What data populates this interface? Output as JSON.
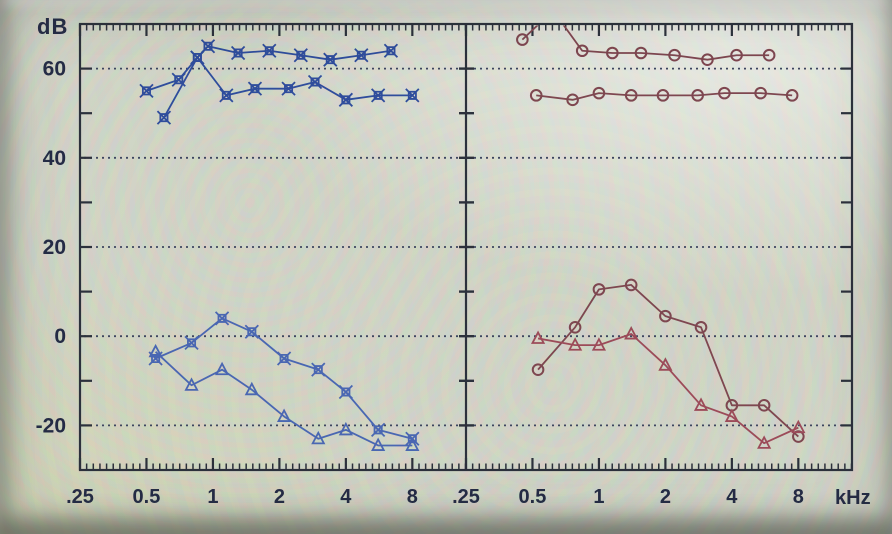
{
  "chart_data": {
    "type": "line",
    "title": "",
    "y_axis": {
      "unit_label": "dB",
      "tick_labels": [
        "60",
        "40",
        "20",
        "0",
        "-20"
      ],
      "tick_values": [
        60,
        40,
        20,
        0,
        -20
      ],
      "range": [
        -30,
        70
      ],
      "minor_tick_step": 10,
      "gridline_values": [
        60,
        40,
        20,
        0,
        -20
      ],
      "grid_style": "dotted"
    },
    "x_axis": {
      "unit_label": "kHz",
      "tick_labels": [
        ".25",
        "0.5",
        "1",
        "2",
        "4",
        "8"
      ],
      "tick_values": [
        0.25,
        0.5,
        1,
        2,
        4,
        8
      ],
      "range": [
        0.25,
        14
      ],
      "scale": "log"
    },
    "colors": {
      "axis": "#2c313c",
      "grid_dots": "#3e4660",
      "label_text": "#252c46",
      "left_panel_curves": "#35539f",
      "right_panel_curves": "#7e4750",
      "background": "#d3d7c9"
    },
    "panels": [
      {
        "id": "left",
        "series": [
          {
            "name": "upper-1",
            "marker": "x-square",
            "color": "#2f4d9c",
            "points": [
              [
                0.5,
                55
              ],
              [
                0.7,
                57.5
              ],
              [
                0.85,
                62.5
              ],
              [
                0.95,
                65
              ],
              [
                1.3,
                63.5
              ],
              [
                1.8,
                64
              ],
              [
                2.5,
                63
              ],
              [
                3.4,
                62
              ],
              [
                4.7,
                63
              ],
              [
                6.4,
                64
              ]
            ]
          },
          {
            "name": "upper-2",
            "marker": "x-square",
            "color": "#2f4d9c",
            "points": [
              [
                0.6,
                49
              ],
              [
                0.85,
                62.5
              ],
              [
                1.15,
                54
              ],
              [
                1.55,
                55.5
              ],
              [
                2.2,
                55.5
              ],
              [
                2.9,
                57
              ],
              [
                4,
                53
              ],
              [
                5.6,
                54
              ],
              [
                8,
                54
              ]
            ]
          },
          {
            "name": "lower-square",
            "marker": "x-square",
            "color": "#4a67b2",
            "points": [
              [
                0.55,
                -5
              ],
              [
                0.8,
                -1.5
              ],
              [
                1.1,
                4
              ],
              [
                1.5,
                1
              ],
              [
                2.1,
                -5
              ],
              [
                3,
                -7.5
              ],
              [
                4,
                -12.5
              ],
              [
                5.6,
                -21
              ],
              [
                8,
                -23
              ]
            ]
          },
          {
            "name": "lower-triangle",
            "marker": "triangle",
            "color": "#4a67b2",
            "points": [
              [
                0.55,
                -3.5
              ],
              [
                0.8,
                -11
              ],
              [
                1.1,
                -7.5
              ],
              [
                1.5,
                -12
              ],
              [
                2.1,
                -18
              ],
              [
                3,
                -23
              ],
              [
                4,
                -21
              ],
              [
                5.6,
                -24.5
              ],
              [
                8,
                -24.5
              ]
            ]
          }
        ]
      },
      {
        "id": "right",
        "series": [
          {
            "name": "upper-1",
            "marker": "circle",
            "color": "#7e4750",
            "points": [
              [
                0.45,
                66.5
              ],
              [
                0.62,
                73
              ],
              [
                0.84,
                64
              ],
              [
                1.15,
                63.5
              ],
              [
                1.55,
                63.5
              ],
              [
                2.2,
                63
              ],
              [
                3.1,
                62
              ],
              [
                4.2,
                63
              ],
              [
                5.9,
                63
              ]
            ]
          },
          {
            "name": "upper-2",
            "marker": "circle",
            "color": "#7e4750",
            "points": [
              [
                0.52,
                54
              ],
              [
                0.76,
                53
              ],
              [
                1,
                54.5
              ],
              [
                1.4,
                54
              ],
              [
                1.95,
                54
              ],
              [
                2.8,
                54
              ],
              [
                3.7,
                54.5
              ],
              [
                5.4,
                54.5
              ],
              [
                7.5,
                54
              ]
            ]
          },
          {
            "name": "lower-circle",
            "marker": "circle",
            "color": "#7e4750",
            "points": [
              [
                0.53,
                -7.5
              ],
              [
                0.78,
                2
              ],
              [
                1,
                10.5
              ],
              [
                1.4,
                11.5
              ],
              [
                2,
                4.5
              ],
              [
                2.9,
                2
              ],
              [
                4,
                -15.5
              ],
              [
                5.6,
                -15.5
              ],
              [
                8,
                -22.5
              ]
            ]
          },
          {
            "name": "lower-triangle",
            "marker": "triangle",
            "color": "#9c4b59",
            "points": [
              [
                0.53,
                -0.5
              ],
              [
                0.78,
                -2
              ],
              [
                1,
                -2
              ],
              [
                1.4,
                0.5
              ],
              [
                2,
                -6.5
              ],
              [
                2.9,
                -15.5
              ],
              [
                4,
                -18
              ],
              [
                5.6,
                -24
              ],
              [
                8,
                -20.5
              ]
            ]
          }
        ]
      }
    ]
  }
}
